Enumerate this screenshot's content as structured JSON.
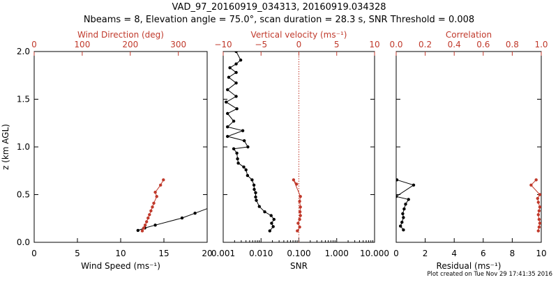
{
  "header": {
    "title_line1": "VAD_97_20160919_034313, 20160919.034328",
    "title_line2": "Nbeams = 8, Elevation angle = 75.0°, scan duration = 28.3 s, SNR Threshold = 0.008"
  },
  "footer": {
    "created": "Plot created on Tue Nov 29 17:41:35 2016"
  },
  "colors": {
    "black": "#000000",
    "red": "#c0392b"
  },
  "chart_data": [
    {
      "type": "line",
      "ylabel": "z (km AGL)",
      "ylim": [
        0,
        2
      ],
      "y_ticks": [
        "0.0",
        "0.5",
        "1.0",
        "1.5",
        "2.0"
      ],
      "xlabel_bottom": "Wind Speed (ms⁻¹)",
      "xlim_bottom": [
        0,
        20
      ],
      "x_ticks_bottom": [
        "0",
        "5",
        "10",
        "15",
        "20"
      ],
      "xlabel_top": "Wind Direction (deg)",
      "xlim_top": [
        0,
        360
      ],
      "x_ticks_top": [
        "0",
        "100",
        "200",
        "300"
      ],
      "series": [
        {
          "axis": "bottom",
          "color": "black",
          "points": [
            [
              12.0,
              0.125
            ],
            [
              12.8,
              0.15
            ],
            [
              14.0,
              0.18
            ],
            [
              17.1,
              0.255
            ],
            [
              18.6,
              0.305
            ],
            [
              20.5,
              0.37
            ]
          ]
        },
        {
          "axis": "top",
          "color": "red",
          "points": [
            [
              225,
              0.12
            ],
            [
              228,
              0.15
            ],
            [
              231,
              0.18
            ],
            [
              234,
              0.215
            ],
            [
              237,
              0.255
            ],
            [
              240,
              0.29
            ],
            [
              243,
              0.33
            ],
            [
              246,
              0.37
            ],
            [
              249,
              0.41
            ],
            [
              255,
              0.48
            ],
            [
              252,
              0.525
            ],
            [
              263,
              0.6
            ],
            [
              269,
              0.655
            ]
          ]
        }
      ]
    },
    {
      "type": "line",
      "xlabel_bottom": "SNR",
      "xscale_bottom": "log",
      "xlim_bottom": [
        0.001,
        10
      ],
      "x_ticks_bottom": [
        "0.001",
        "0.010",
        "0.100",
        "1.000",
        "10.000"
      ],
      "xlabel_top": "Vertical velocity (ms⁻¹)",
      "xlim_top": [
        -10,
        10
      ],
      "x_ticks_top": [
        "−10",
        "−5",
        "0",
        "5",
        "10"
      ],
      "zero_line_top": 0,
      "series": [
        {
          "axis": "bottom",
          "color": "black",
          "points": [
            [
              0.017,
              0.12
            ],
            [
              0.021,
              0.165
            ],
            [
              0.019,
              0.2
            ],
            [
              0.022,
              0.24
            ],
            [
              0.0185,
              0.28
            ],
            [
              0.0125,
              0.32
            ],
            [
              0.009,
              0.375
            ],
            [
              0.0075,
              0.44
            ],
            [
              0.0072,
              0.475
            ],
            [
              0.0072,
              0.52
            ],
            [
              0.0066,
              0.555
            ],
            [
              0.0065,
              0.6
            ],
            [
              0.0058,
              0.655
            ],
            [
              0.0044,
              0.7
            ],
            [
              0.004,
              0.76
            ],
            [
              0.0035,
              0.79
            ],
            [
              0.0025,
              0.83
            ],
            [
              0.0024,
              0.875
            ],
            [
              0.0023,
              0.935
            ],
            [
              0.0019,
              0.98
            ],
            [
              0.0045,
              1.0
            ],
            [
              0.0036,
              1.065
            ],
            [
              0.0013,
              1.11
            ],
            [
              0.0033,
              1.17
            ],
            [
              0.0013,
              1.21
            ],
            [
              0.0019,
              1.27
            ],
            [
              0.0013,
              1.35
            ],
            [
              0.0023,
              1.4
            ],
            [
              0.0012,
              1.47
            ],
            [
              0.0022,
              1.53
            ],
            [
              0.0013,
              1.6
            ],
            [
              0.0022,
              1.67
            ],
            [
              0.0014,
              1.73
            ],
            [
              0.0022,
              1.78
            ],
            [
              0.0015,
              1.83
            ],
            [
              0.0022,
              1.87
            ],
            [
              0.0029,
              1.91
            ],
            [
              0.0022,
              2.0
            ]
          ]
        },
        {
          "axis": "top",
          "color": "red",
          "points": [
            [
              -0.2,
              0.12
            ],
            [
              0.1,
              0.16
            ],
            [
              -0.1,
              0.2
            ],
            [
              0.1,
              0.24
            ],
            [
              0.2,
              0.28
            ],
            [
              0.15,
              0.32
            ],
            [
              0.2,
              0.37
            ],
            [
              0.1,
              0.43
            ],
            [
              0.2,
              0.48
            ],
            [
              -0.7,
              0.655
            ],
            [
              -0.3,
              0.61
            ]
          ]
        }
      ]
    },
    {
      "type": "line",
      "xlabel_bottom": "Residual (ms⁻¹)",
      "xlim_bottom": [
        0,
        10
      ],
      "x_ticks_bottom": [
        "0",
        "2",
        "4",
        "6",
        "8",
        "10"
      ],
      "xlabel_top": "Correlation",
      "xlim_top": [
        0,
        1
      ],
      "x_ticks_top": [
        "0.0",
        "0.2",
        "0.4",
        "0.6",
        "0.8",
        "1.0"
      ],
      "series": [
        {
          "axis": "bottom",
          "color": "black",
          "points": [
            [
              0.5,
              0.13
            ],
            [
              0.3,
              0.17
            ],
            [
              0.4,
              0.21
            ],
            [
              0.5,
              0.26
            ],
            [
              0.45,
              0.3
            ],
            [
              0.55,
              0.35
            ],
            [
              0.65,
              0.4
            ],
            [
              0.85,
              0.45
            ],
            [
              0.0,
              0.48
            ],
            [
              1.2,
              0.6
            ],
            [
              0.05,
              0.655
            ]
          ]
        },
        {
          "axis": "top",
          "color": "red",
          "points": [
            [
              0.98,
              0.12
            ],
            [
              0.985,
              0.16
            ],
            [
              0.99,
              0.2
            ],
            [
              0.985,
              0.24
            ],
            [
              0.98,
              0.29
            ],
            [
              0.985,
              0.33
            ],
            [
              0.99,
              0.37
            ],
            [
              0.98,
              0.42
            ],
            [
              0.975,
              0.46
            ],
            [
              0.99,
              0.5
            ],
            [
              0.93,
              0.6
            ],
            [
              0.965,
              0.655
            ]
          ]
        }
      ]
    }
  ]
}
